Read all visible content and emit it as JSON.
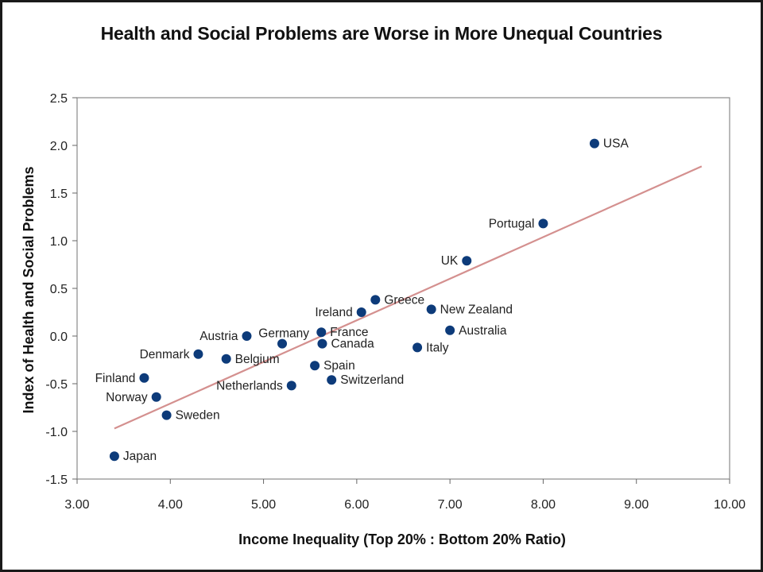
{
  "chart_data": {
    "type": "scatter",
    "title": "Health and Social Problems are Worse in More Unequal Countries",
    "xlabel": "Income Inequality (Top 20% : Bottom 20% Ratio)",
    "ylabel": "Index of Health and Social Problems",
    "xlim": [
      3.0,
      10.0
    ],
    "ylim": [
      -1.5,
      2.5
    ],
    "xticks": [
      "3.00",
      "4.00",
      "5.00",
      "6.00",
      "7.00",
      "8.00",
      "9.00",
      "10.00"
    ],
    "yticks": [
      "2.5",
      "2.0",
      "1.5",
      "1.0",
      "0.5",
      "0.0",
      "-0.5",
      "-1.0",
      "-1.5"
    ],
    "grid": false,
    "point_color": "#0d3b7a",
    "trendline_color": "#d4908f",
    "trendline": {
      "x": [
        3.4,
        9.7
      ],
      "y": [
        -0.97,
        1.78
      ]
    },
    "points": [
      {
        "label": "USA",
        "x": 8.55,
        "y": 2.02,
        "side": "right"
      },
      {
        "label": "Portugal",
        "x": 8.0,
        "y": 1.18,
        "side": "left"
      },
      {
        "label": "UK",
        "x": 7.18,
        "y": 0.79,
        "side": "left"
      },
      {
        "label": "Greece",
        "x": 6.2,
        "y": 0.38,
        "side": "right"
      },
      {
        "label": "New Zealand",
        "x": 6.8,
        "y": 0.28,
        "side": "right"
      },
      {
        "label": "Ireland",
        "x": 6.05,
        "y": 0.25,
        "side": "left"
      },
      {
        "label": "Australia",
        "x": 7.0,
        "y": 0.06,
        "side": "right"
      },
      {
        "label": "France",
        "x": 5.62,
        "y": 0.04,
        "side": "right"
      },
      {
        "label": "Austria",
        "x": 4.82,
        "y": 0.0,
        "side": "left"
      },
      {
        "label": "Germany",
        "x": 5.2,
        "y": -0.08,
        "side": "above-left"
      },
      {
        "label": "Canada",
        "x": 5.63,
        "y": -0.08,
        "side": "right"
      },
      {
        "label": "Italy",
        "x": 6.65,
        "y": -0.12,
        "side": "right"
      },
      {
        "label": "Denmark",
        "x": 4.3,
        "y": -0.19,
        "side": "left"
      },
      {
        "label": "Belgium",
        "x": 4.6,
        "y": -0.24,
        "side": "right"
      },
      {
        "label": "Spain",
        "x": 5.55,
        "y": -0.31,
        "side": "right"
      },
      {
        "label": "Finland",
        "x": 3.72,
        "y": -0.44,
        "side": "left"
      },
      {
        "label": "Switzerland",
        "x": 5.73,
        "y": -0.46,
        "side": "right"
      },
      {
        "label": "Netherlands",
        "x": 5.3,
        "y": -0.52,
        "side": "left"
      },
      {
        "label": "Norway",
        "x": 3.85,
        "y": -0.64,
        "side": "left"
      },
      {
        "label": "Sweden",
        "x": 3.96,
        "y": -0.83,
        "side": "right"
      },
      {
        "label": "Japan",
        "x": 3.4,
        "y": -1.26,
        "side": "right"
      }
    ]
  }
}
